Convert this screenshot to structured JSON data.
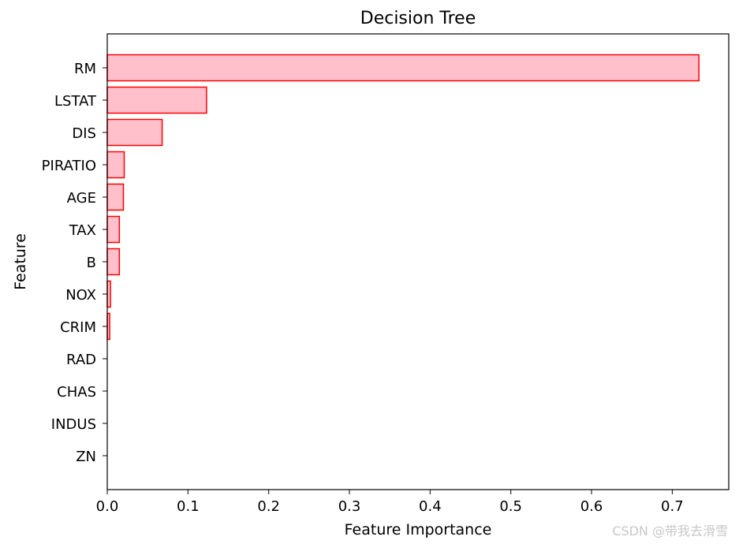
{
  "chart_data": {
    "type": "bar",
    "orientation": "horizontal",
    "title": "Decision Tree",
    "xlabel": "Feature Importance",
    "ylabel": "Feature",
    "categories": [
      "RM",
      "LSTAT",
      "DIS",
      "PIRATIO",
      "AGE",
      "TAX",
      "B",
      "NOX",
      "CRIM",
      "RAD",
      "CHAS",
      "INDUS",
      "ZN"
    ],
    "values": [
      0.733,
      0.123,
      0.068,
      0.021,
      0.02,
      0.015,
      0.015,
      0.004,
      0.003,
      0.0,
      0.0,
      0.0,
      0.0
    ],
    "xlim": [
      0,
      0.77
    ],
    "xticks": [
      "0.0",
      "0.1",
      "0.2",
      "0.3",
      "0.4",
      "0.5",
      "0.6",
      "0.7"
    ],
    "grid": false,
    "colors": {
      "bar_fill": "#ffc0cb",
      "bar_edge": "#ff0000"
    }
  },
  "watermark": "CSDN @带我去滑雪"
}
